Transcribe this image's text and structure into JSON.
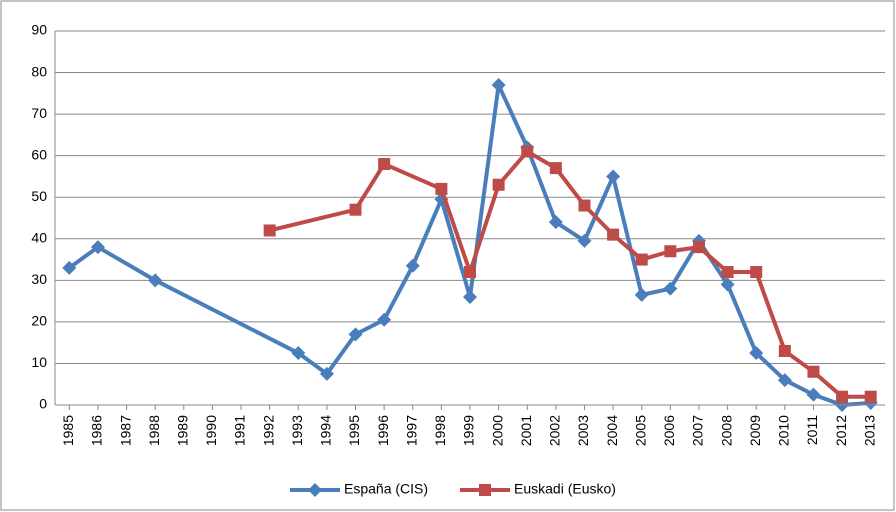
{
  "chart_data": {
    "type": "line",
    "xlim": [
      1984.5,
      2013.5
    ],
    "xticks": [
      1985,
      1986,
      1987,
      1988,
      1989,
      1990,
      1991,
      1992,
      1993,
      1994,
      1995,
      1996,
      1997,
      1998,
      1999,
      2000,
      2001,
      2002,
      2003,
      2004,
      2005,
      2006,
      2007,
      2008,
      2009,
      2010,
      2011,
      2012,
      2013
    ],
    "ylim": [
      0,
      90
    ],
    "yticks": [
      0,
      10,
      20,
      30,
      40,
      50,
      60,
      70,
      80,
      90
    ],
    "grid": true,
    "legend": "bottom",
    "series": [
      {
        "name": "España (CIS)",
        "color": "#4a7ebb",
        "marker": "diamond",
        "x": [
          1985,
          1986,
          1988,
          1993,
          1994,
          1995,
          1996,
          1997,
          1998,
          1999,
          2000,
          2001,
          2002,
          2003,
          2004,
          2005,
          2006,
          2007,
          2008,
          2009,
          2010,
          2011,
          2012,
          2013
        ],
        "values": [
          33,
          38,
          30,
          12.5,
          7.5,
          17,
          20.5,
          33.5,
          49.5,
          26,
          77,
          62,
          44,
          39.5,
          55,
          26.5,
          28,
          39.5,
          29,
          12.5,
          6,
          2.5,
          0,
          0.5
        ]
      },
      {
        "name": "Euskadi (Eusko)",
        "color": "#be4b48",
        "marker": "square",
        "x": [
          1992,
          1995,
          1996,
          1998,
          1999,
          2000,
          2001,
          2002,
          2003,
          2004,
          2005,
          2006,
          2007,
          2008,
          2009,
          2010,
          2011,
          2012,
          2013
        ],
        "values": [
          42,
          47,
          58,
          52,
          32,
          53,
          61,
          57,
          48,
          41,
          35,
          37,
          38,
          32,
          32,
          13,
          8,
          2,
          2
        ]
      }
    ]
  }
}
